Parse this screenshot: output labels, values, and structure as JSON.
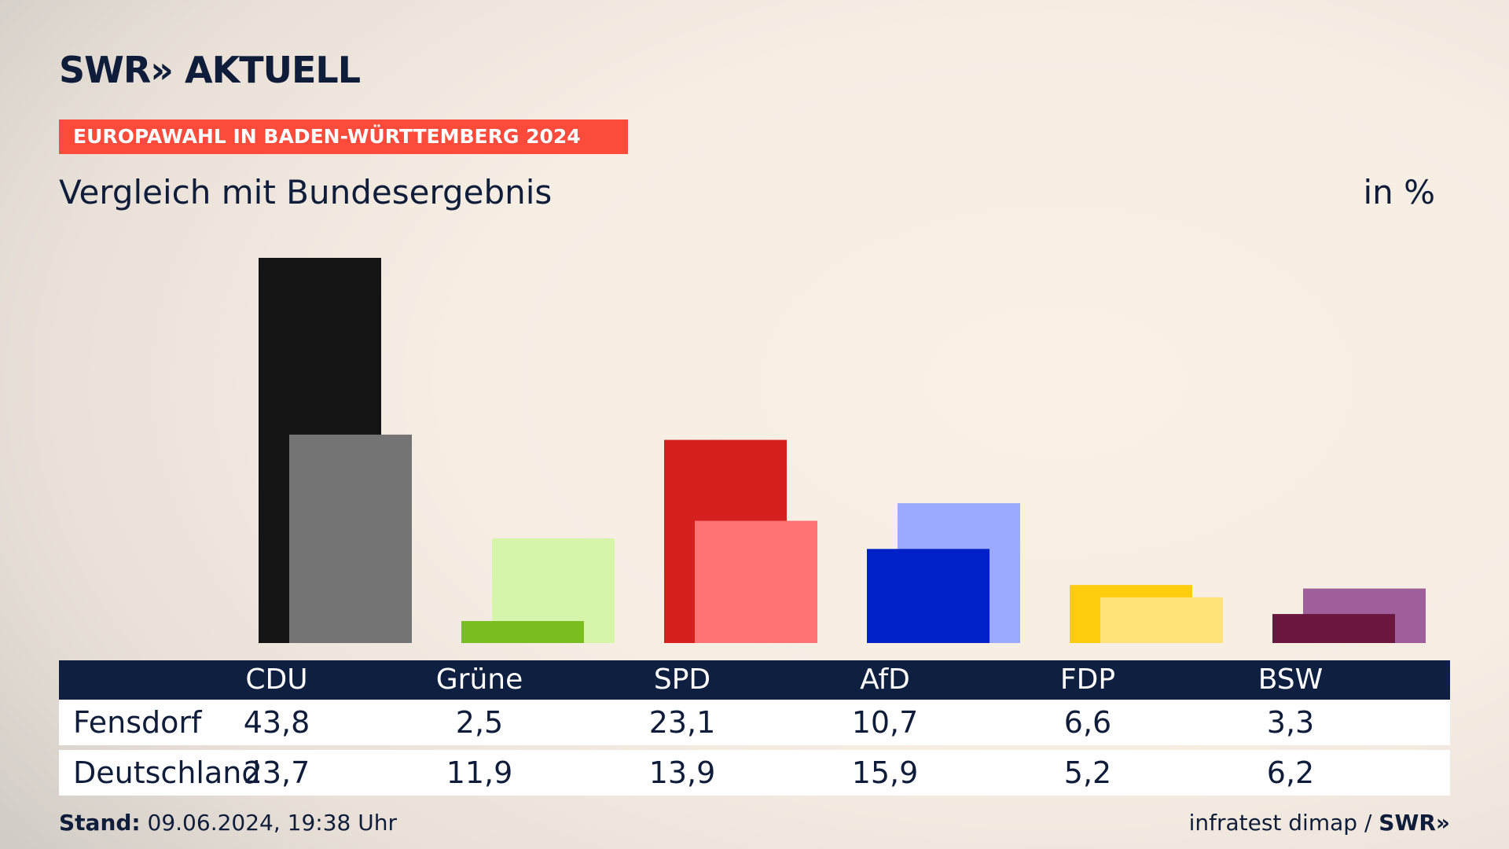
{
  "header": {
    "logo": "SWR",
    "logo_arrows": "»",
    "logo_text": "AKTUELL",
    "tag": "EUROPAWAHL IN BADEN-WÜRTTEMBERG 2024",
    "subtitle": "Vergleich mit Bundesergebnis",
    "unit": "in %"
  },
  "colors": {
    "navy": "#0e1f40",
    "tag_red": "#fd4b3b"
  },
  "chart_data": {
    "type": "bar",
    "categories": [
      "CDU",
      "Grüne",
      "SPD",
      "AfD",
      "FDP",
      "BSW"
    ],
    "series": [
      {
        "name": "Fensdorf",
        "values": [
          43.8,
          2.5,
          23.1,
          10.7,
          6.6,
          3.3
        ],
        "colors": [
          "#141414",
          "#7abd1f",
          "#d61f1f",
          "#0020c8",
          "#fdcd0e",
          "#6b1841"
        ]
      },
      {
        "name": "Deutschland",
        "values": [
          23.7,
          11.9,
          13.9,
          15.9,
          5.2,
          6.2
        ],
        "colors": [
          "#747474",
          "#d6f5ab",
          "#ff7373",
          "#9baaff",
          "#ffe278",
          "#9e5f9b"
        ]
      }
    ],
    "ylim": [
      0,
      43.8
    ],
    "value_labels": {
      "Fensdorf": [
        "43,8",
        "2,5",
        "23,1",
        "10,7",
        "6,6",
        "3,3"
      ],
      "Deutschland": [
        "23,7",
        "11,9",
        "13,9",
        "15,9",
        "5,2",
        "6,2"
      ]
    }
  },
  "table": {
    "rows": [
      {
        "label": "Fensdorf"
      },
      {
        "label": "Deutschland"
      }
    ]
  },
  "footer": {
    "stand_label": "Stand:",
    "stand_value": "09.06.2024, 19:38 Uhr",
    "source": "infratest dimap /",
    "source_logo": "SWR»"
  }
}
